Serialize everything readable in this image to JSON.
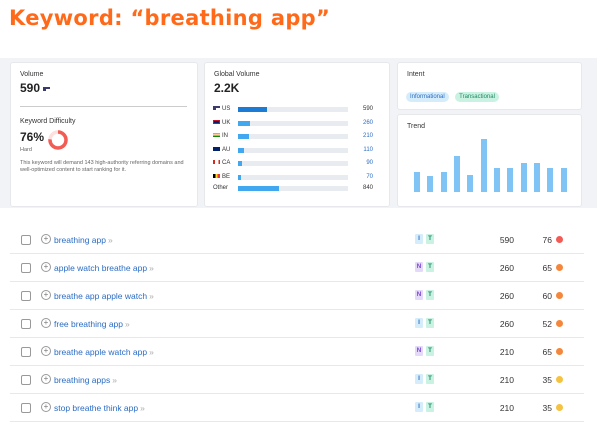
{
  "title": "Keyword: “breathing app”",
  "volume": {
    "label": "Volume",
    "value": "590",
    "flag": "US"
  },
  "kd": {
    "label": "Keyword Difficulty",
    "percent": "76%",
    "percent_value": 76,
    "level": "Hard",
    "description": "This keyword will demand 143 high-authority referring domains and well-optimized content to start ranking for it.",
    "color": "#f25c54"
  },
  "global_volume": {
    "label": "Global Volume",
    "value": "2.2K",
    "rows": [
      {
        "code": "US",
        "value": "590",
        "fraction": 0.26,
        "strong": true
      },
      {
        "code": "UK",
        "value": "260",
        "fraction": 0.11,
        "strong": false
      },
      {
        "code": "IN",
        "value": "210",
        "fraction": 0.1,
        "strong": false
      },
      {
        "code": "AU",
        "value": "110",
        "fraction": 0.05,
        "strong": false
      },
      {
        "code": "CA",
        "value": "90",
        "fraction": 0.04,
        "strong": false
      },
      {
        "code": "BE",
        "value": "70",
        "fraction": 0.03,
        "strong": false
      }
    ],
    "other": {
      "label": "Other",
      "value": "840",
      "fraction": 0.37
    }
  },
  "intent": {
    "label": "Intent",
    "tags": [
      {
        "text": "Informational",
        "bg": "#d5ecfb",
        "fg": "#2a6cc4"
      },
      {
        "text": "Transactional",
        "bg": "#c9f2e2",
        "fg": "#1d8a63"
      }
    ]
  },
  "trend": {
    "label": "Trend",
    "values": [
      0.37,
      0.3,
      0.37,
      0.68,
      0.33,
      1.0,
      0.45,
      0.45,
      0.54,
      0.54,
      0.46,
      0.46
    ]
  },
  "rows": [
    {
      "keyword": "breathing app",
      "intents": [
        "I",
        "T"
      ],
      "volume": "590",
      "kd": "76",
      "dot": "#f25c54"
    },
    {
      "keyword": "apple watch breathe app",
      "intents": [
        "N",
        "T"
      ],
      "volume": "260",
      "kd": "65",
      "dot": "#f4873b"
    },
    {
      "keyword": "breathe app apple watch",
      "intents": [
        "N",
        "T"
      ],
      "volume": "260",
      "kd": "60",
      "dot": "#f4873b"
    },
    {
      "keyword": "free breathing app",
      "intents": [
        "I",
        "T"
      ],
      "volume": "260",
      "kd": "52",
      "dot": "#f4873b"
    },
    {
      "keyword": "breathe apple watch app",
      "intents": [
        "N",
        "T"
      ],
      "volume": "210",
      "kd": "65",
      "dot": "#f4873b"
    },
    {
      "keyword": "breathing apps",
      "intents": [
        "I",
        "T"
      ],
      "volume": "210",
      "kd": "35",
      "dot": "#f5c242"
    },
    {
      "keyword": "stop breathe think app",
      "intents": [
        "I",
        "T"
      ],
      "volume": "210",
      "kd": "35",
      "dot": "#f5c242"
    }
  ],
  "row_arrow": "»",
  "intent_colors": {
    "I": {
      "bg": "#d5ecfb",
      "fg": "#2a6cc4"
    },
    "T": {
      "bg": "#c9f2e2",
      "fg": "#1d8a63"
    },
    "N": {
      "bg": "#e5d9fa",
      "fg": "#7a4bd1"
    }
  }
}
